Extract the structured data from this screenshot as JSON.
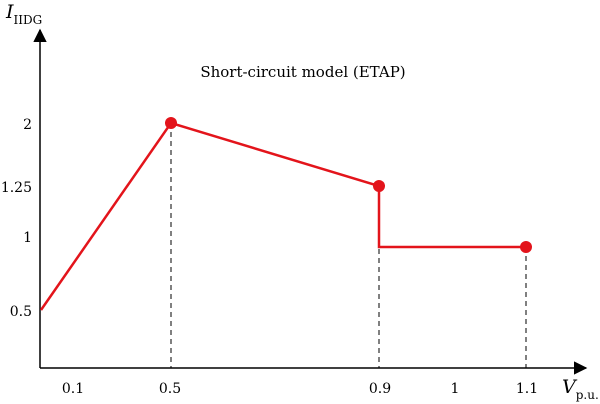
{
  "chart_data": {
    "type": "line",
    "title": "Short-circuit model (ETAP)",
    "ylabel_main": "I",
    "ylabel_sub": "IIDG",
    "xlabel_main": "V",
    "xlabel_sub": "p.u.",
    "x_ticks": [
      "0.1",
      "0.5",
      "0.9",
      "1",
      "1.1"
    ],
    "y_ticks": [
      "0.5",
      "1",
      "1.25",
      "2"
    ],
    "line_color": "#e3141b",
    "series": [
      {
        "points": [
          {
            "x": 0.0,
            "y": 0.5
          },
          {
            "x": 0.5,
            "y": 2.0
          },
          {
            "x": 0.9,
            "y": 1.25
          },
          {
            "x": 0.9,
            "y": 0.95
          },
          {
            "x": 1.1,
            "y": 0.95
          }
        ],
        "markers": [
          {
            "x": 0.5,
            "y": 2.0
          },
          {
            "x": 0.9,
            "y": 1.25
          },
          {
            "x": 1.1,
            "y": 0.95
          }
        ]
      }
    ],
    "dashed_drops": [
      0.5,
      0.9,
      1.1
    ]
  }
}
